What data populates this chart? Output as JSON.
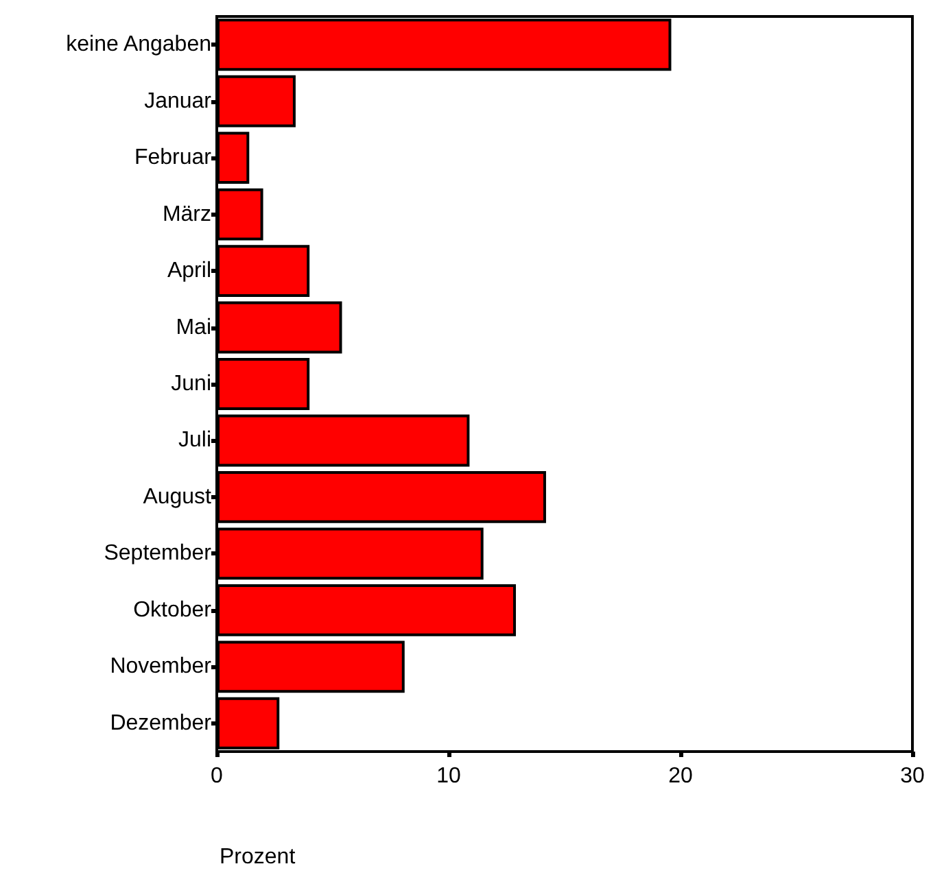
{
  "chart_data": {
    "type": "bar",
    "orientation": "horizontal",
    "xlabel": "Prozent",
    "categories": [
      "keine Angaben",
      "Januar",
      "Februar",
      "März",
      "April",
      "Mai",
      "Juni",
      "Juli",
      "August",
      "September",
      "Oktober",
      "November",
      "Dezember"
    ],
    "values": [
      19.6,
      3.4,
      1.4,
      2.0,
      4.0,
      5.4,
      4.0,
      10.9,
      14.2,
      11.5,
      12.9,
      8.1,
      2.7
    ],
    "color": "#ff0000",
    "xlim": [
      0,
      30
    ],
    "xticks": [
      0,
      10,
      20,
      30
    ],
    "grid": false
  }
}
